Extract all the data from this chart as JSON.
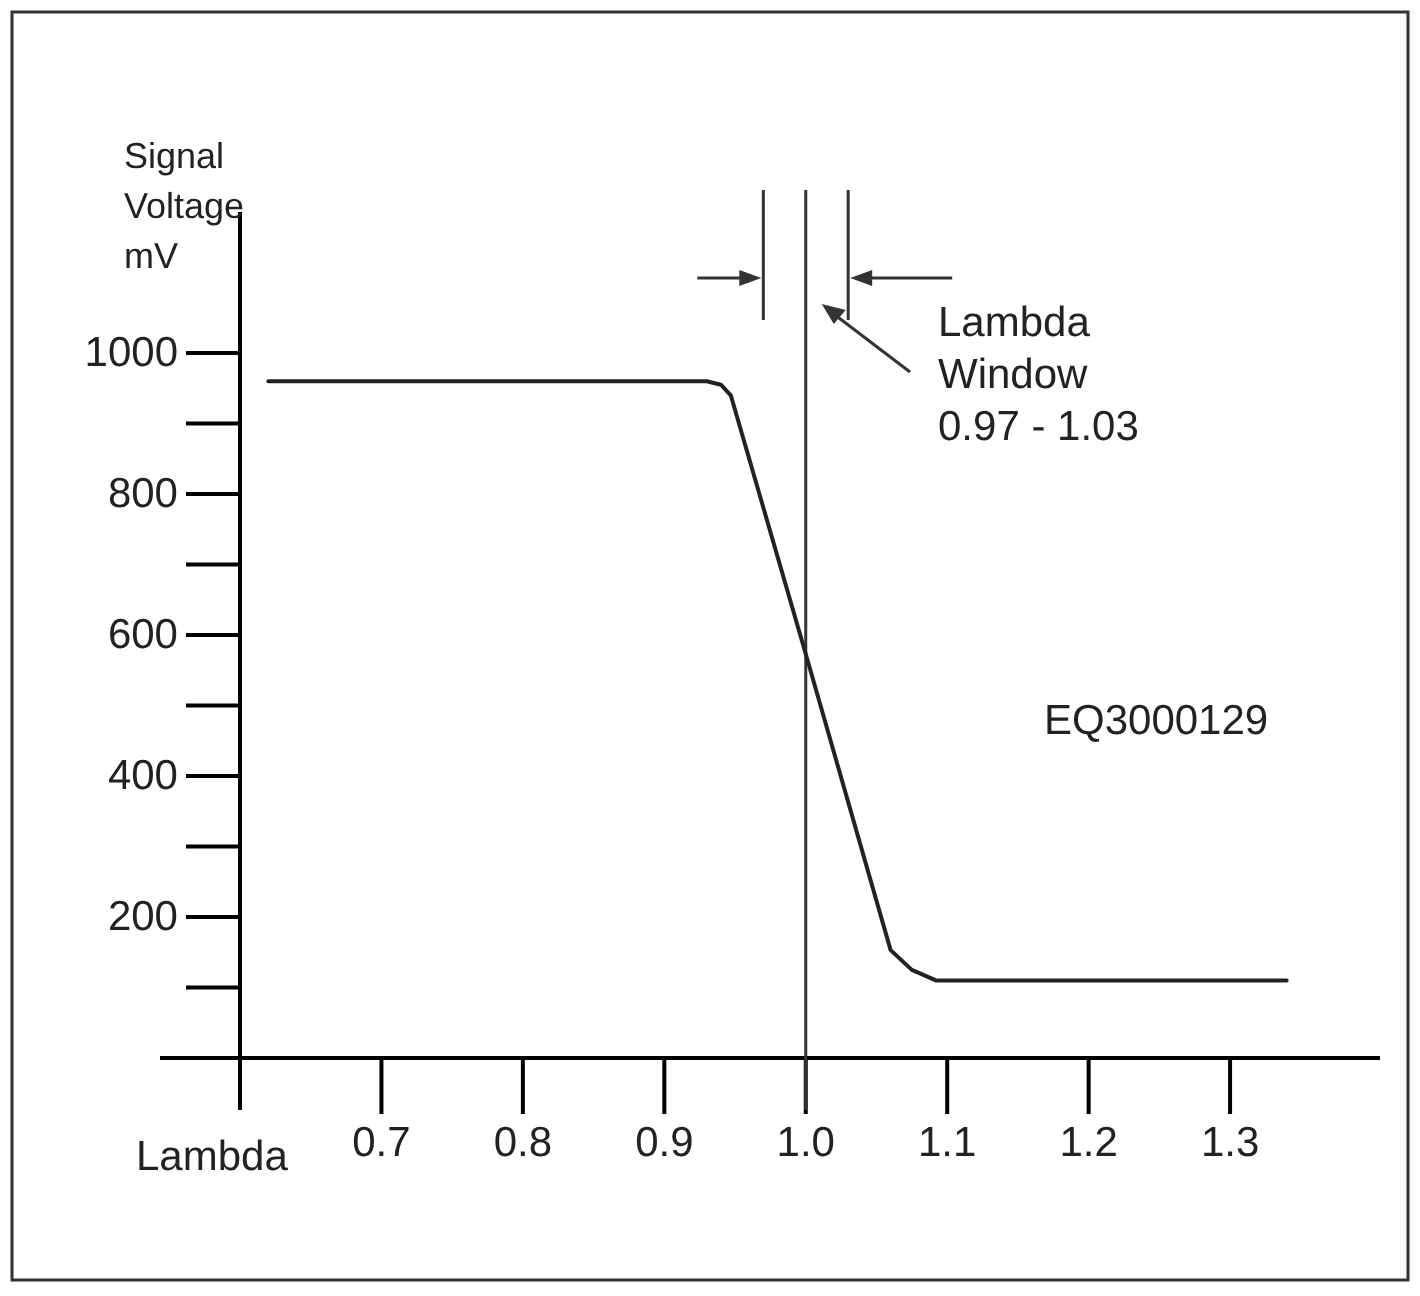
{
  "chart_data": {
    "type": "line",
    "xlabel": "Lambda",
    "ylabel": "Signal\nVoltage\nmV",
    "x": [
      0.62,
      0.93,
      0.94,
      0.947,
      1.0,
      1.06,
      1.075,
      1.092,
      1.34
    ],
    "series": [
      {
        "color": "#222222",
        "values": [
          960,
          960,
          955,
          940,
          573,
          153,
          125,
          110,
          110
        ]
      }
    ],
    "xlim": [
      0.6,
      1.406
    ],
    "ylim": [
      0,
      1200
    ],
    "xticks": [
      0.7,
      0.8,
      0.9,
      {
        "value": 1.0,
        "label": "1.0"
      },
      1.1,
      1.2,
      1.3
    ],
    "yticks": [
      200,
      400,
      600,
      800,
      1000
    ],
    "ref_lines": [
      {
        "axis": "x",
        "value": 1.0
      },
      {
        "axis": "x",
        "value": 0.97
      },
      {
        "axis": "x",
        "value": 1.03
      }
    ],
    "annotations": [
      "Lambda\nWindow\n0.97 - 1.03",
      "EQ3000129"
    ]
  }
}
